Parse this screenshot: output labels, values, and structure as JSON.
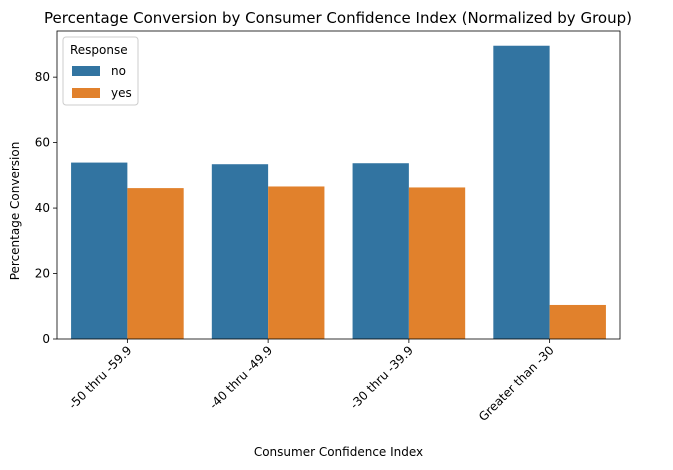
{
  "chart_data": {
    "type": "bar",
    "title": "Percentage Conversion by Consumer Confidence Index (Normalized by Group)",
    "xlabel": "Consumer Confidence Index",
    "ylabel": "Percentage Conversion",
    "categories": [
      "-50 thru -59.9",
      "-40 thru -49.9",
      "-30 thru -39.9",
      "Greater than -30"
    ],
    "series": [
      {
        "name": "no",
        "color": "#3274a1",
        "values": [
          53.9,
          53.4,
          53.7,
          89.6
        ]
      },
      {
        "name": "yes",
        "color": "#e1812c",
        "values": [
          46.1,
          46.6,
          46.3,
          10.4
        ]
      }
    ],
    "ylim": [
      0,
      94.1
    ],
    "yticks": [
      0,
      20,
      40,
      60,
      80
    ],
    "grid": false,
    "legend": {
      "title": "Response",
      "position": "top-left"
    }
  }
}
